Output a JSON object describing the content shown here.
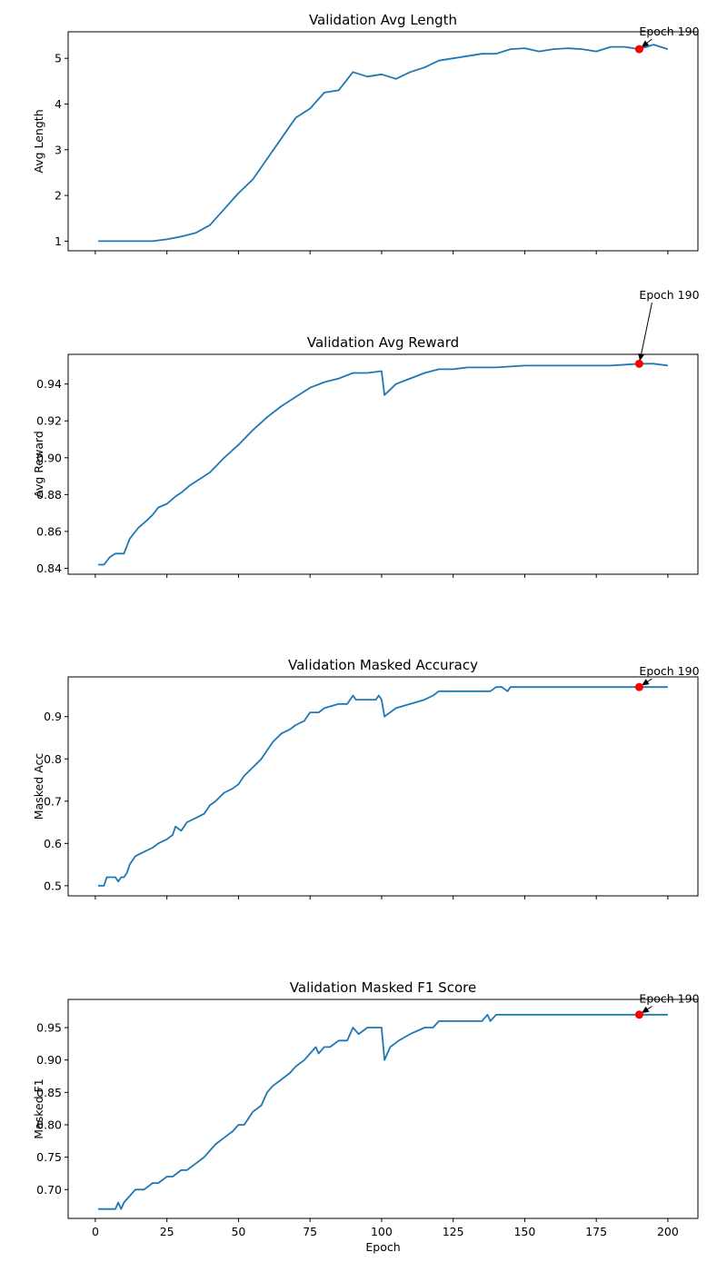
{
  "chart_data": [
    {
      "type": "line",
      "title": "Validation Avg Length",
      "xlabel": "",
      "ylabel": "Avg Length",
      "xlim": [
        -9.5,
        210.5
      ],
      "ylim": [
        0.79,
        5.58
      ],
      "xticks": [
        0,
        25,
        50,
        75,
        100,
        125,
        150,
        175,
        200
      ],
      "yticks": [
        1,
        2,
        3,
        4,
        5
      ],
      "ytick_labels": [
        "1",
        "2",
        "3",
        "4",
        "5"
      ],
      "show_xtick_labels": false,
      "series": [
        {
          "x": [
            1,
            20,
            25,
            30,
            35,
            40,
            45,
            50,
            55,
            60,
            65,
            70,
            75,
            80,
            85,
            90,
            95,
            100,
            105,
            110,
            115,
            120,
            125,
            130,
            135,
            140,
            145,
            150,
            155,
            160,
            165,
            170,
            175,
            180,
            185,
            190,
            195,
            200
          ],
          "values": [
            1.0,
            1.0,
            1.04,
            1.1,
            1.18,
            1.35,
            1.7,
            2.05,
            2.35,
            2.8,
            3.25,
            3.7,
            3.9,
            4.25,
            4.3,
            4.7,
            4.6,
            4.65,
            4.55,
            4.7,
            4.8,
            4.95,
            5.0,
            5.05,
            5.1,
            5.1,
            5.2,
            5.22,
            5.15,
            5.2,
            5.22,
            5.2,
            5.15,
            5.25,
            5.25,
            5.2,
            5.3,
            5.2
          ]
        }
      ],
      "annotation": {
        "text": "Epoch 190",
        "x": 190,
        "y": 5.2,
        "text_x": 190,
        "text_y": 5.5
      }
    },
    {
      "type": "line",
      "title": "Validation Avg Reward",
      "xlabel": "",
      "ylabel": "Avg Reward",
      "xlim": [
        -9.5,
        210.5
      ],
      "ylim": [
        0.8368,
        0.9561
      ],
      "xticks": [
        0,
        25,
        50,
        75,
        100,
        125,
        150,
        175,
        200
      ],
      "yticks": [
        0.84,
        0.86,
        0.88,
        0.9,
        0.92,
        0.94
      ],
      "ytick_labels": [
        "0.84",
        "0.86",
        "0.88",
        "0.90",
        "0.92",
        "0.94"
      ],
      "show_xtick_labels": false,
      "series": [
        {
          "x": [
            1,
            3,
            5,
            7,
            10,
            12,
            15,
            18,
            20,
            22,
            25,
            28,
            30,
            33,
            35,
            40,
            45,
            50,
            55,
            60,
            65,
            70,
            75,
            80,
            85,
            90,
            95,
            100,
            101,
            105,
            110,
            115,
            120,
            125,
            130,
            140,
            150,
            160,
            170,
            180,
            190,
            195,
            200
          ],
          "values": [
            0.842,
            0.842,
            0.846,
            0.848,
            0.848,
            0.856,
            0.862,
            0.866,
            0.869,
            0.873,
            0.875,
            0.879,
            0.881,
            0.885,
            0.887,
            0.892,
            0.9,
            0.907,
            0.915,
            0.922,
            0.928,
            0.933,
            0.938,
            0.941,
            0.943,
            0.946,
            0.946,
            0.947,
            0.934,
            0.94,
            0.943,
            0.946,
            0.948,
            0.948,
            0.949,
            0.949,
            0.95,
            0.95,
            0.95,
            0.95,
            0.951,
            0.951,
            0.95
          ]
        }
      ],
      "annotation": {
        "text": "Epoch 190",
        "x": 190,
        "y": 0.951,
        "text_x": 190,
        "text_y": 0.9861
      }
    },
    {
      "type": "line",
      "title": "Validation Masked Accuracy",
      "xlabel": "",
      "ylabel": "Masked Acc",
      "xlim": [
        -9.5,
        210.5
      ],
      "ylim": [
        0.476,
        0.994
      ],
      "xticks": [
        0,
        25,
        50,
        75,
        100,
        125,
        150,
        175,
        200
      ],
      "yticks": [
        0.5,
        0.6,
        0.7,
        0.8,
        0.9
      ],
      "ytick_labels": [
        "0.5",
        "0.6",
        "0.7",
        "0.8",
        "0.9"
      ],
      "show_xtick_labels": false,
      "series": [
        {
          "x": [
            1,
            3,
            4,
            7,
            8,
            9,
            10,
            11,
            12,
            14,
            17,
            20,
            22,
            25,
            27,
            28,
            30,
            32,
            35,
            38,
            40,
            42,
            45,
            48,
            50,
            52,
            55,
            58,
            60,
            62,
            65,
            68,
            70,
            73,
            75,
            78,
            80,
            85,
            88,
            90,
            91,
            95,
            98,
            99,
            100,
            101,
            105,
            110,
            115,
            118,
            120,
            125,
            130,
            135,
            138,
            140,
            142,
            144,
            145,
            150,
            160,
            170,
            180,
            190,
            200
          ],
          "values": [
            0.5,
            0.5,
            0.52,
            0.52,
            0.51,
            0.52,
            0.52,
            0.53,
            0.55,
            0.57,
            0.58,
            0.59,
            0.6,
            0.61,
            0.62,
            0.64,
            0.63,
            0.65,
            0.66,
            0.67,
            0.69,
            0.7,
            0.72,
            0.73,
            0.74,
            0.76,
            0.78,
            0.8,
            0.82,
            0.84,
            0.86,
            0.87,
            0.88,
            0.89,
            0.91,
            0.91,
            0.92,
            0.93,
            0.93,
            0.95,
            0.94,
            0.94,
            0.94,
            0.95,
            0.94,
            0.9,
            0.92,
            0.93,
            0.94,
            0.95,
            0.96,
            0.96,
            0.96,
            0.96,
            0.96,
            0.97,
            0.97,
            0.96,
            0.97,
            0.97,
            0.97,
            0.97,
            0.97,
            0.97,
            0.97
          ]
        }
      ],
      "annotation": {
        "text": "Epoch 190",
        "x": 190,
        "y": 0.97,
        "text_x": 190,
        "text_y": 0.998
      }
    },
    {
      "type": "line",
      "title": "Validation Masked F1 Score",
      "xlabel": "Epoch",
      "ylabel": "Masked F1",
      "xlim": [
        -9.5,
        210.5
      ],
      "ylim": [
        0.6555,
        0.9935
      ],
      "xticks": [
        0,
        25,
        50,
        75,
        100,
        125,
        150,
        175,
        200
      ],
      "xtick_labels": [
        "0",
        "25",
        "50",
        "75",
        "100",
        "125",
        "150",
        "175",
        "200"
      ],
      "yticks": [
        0.7,
        0.75,
        0.8,
        0.85,
        0.9,
        0.95
      ],
      "ytick_labels": [
        "0.70",
        "0.75",
        "0.80",
        "0.85",
        "0.90",
        "0.95"
      ],
      "show_xtick_labels": true,
      "series": [
        {
          "x": [
            1,
            7,
            8,
            9,
            10,
            12,
            14,
            17,
            20,
            22,
            25,
            27,
            30,
            32,
            35,
            38,
            40,
            42,
            45,
            48,
            50,
            52,
            55,
            58,
            60,
            62,
            65,
            68,
            70,
            73,
            75,
            77,
            78,
            80,
            82,
            85,
            88,
            90,
            92,
            95,
            98,
            100,
            101,
            103,
            106,
            110,
            115,
            118,
            120,
            125,
            130,
            135,
            137,
            138,
            140,
            150,
            160,
            170,
            180,
            190,
            200
          ],
          "values": [
            0.67,
            0.67,
            0.68,
            0.67,
            0.68,
            0.69,
            0.7,
            0.7,
            0.71,
            0.71,
            0.72,
            0.72,
            0.73,
            0.73,
            0.74,
            0.75,
            0.76,
            0.77,
            0.78,
            0.79,
            0.8,
            0.8,
            0.82,
            0.83,
            0.85,
            0.86,
            0.87,
            0.88,
            0.89,
            0.9,
            0.91,
            0.92,
            0.91,
            0.92,
            0.92,
            0.93,
            0.93,
            0.95,
            0.94,
            0.95,
            0.95,
            0.95,
            0.9,
            0.92,
            0.93,
            0.94,
            0.95,
            0.95,
            0.96,
            0.96,
            0.96,
            0.96,
            0.97,
            0.96,
            0.97,
            0.97,
            0.97,
            0.97,
            0.97,
            0.97,
            0.97
          ]
        }
      ],
      "annotation": {
        "text": "Epoch 190",
        "x": 190,
        "y": 0.97,
        "text_x": 190,
        "text_y": 0.9885
      }
    }
  ]
}
